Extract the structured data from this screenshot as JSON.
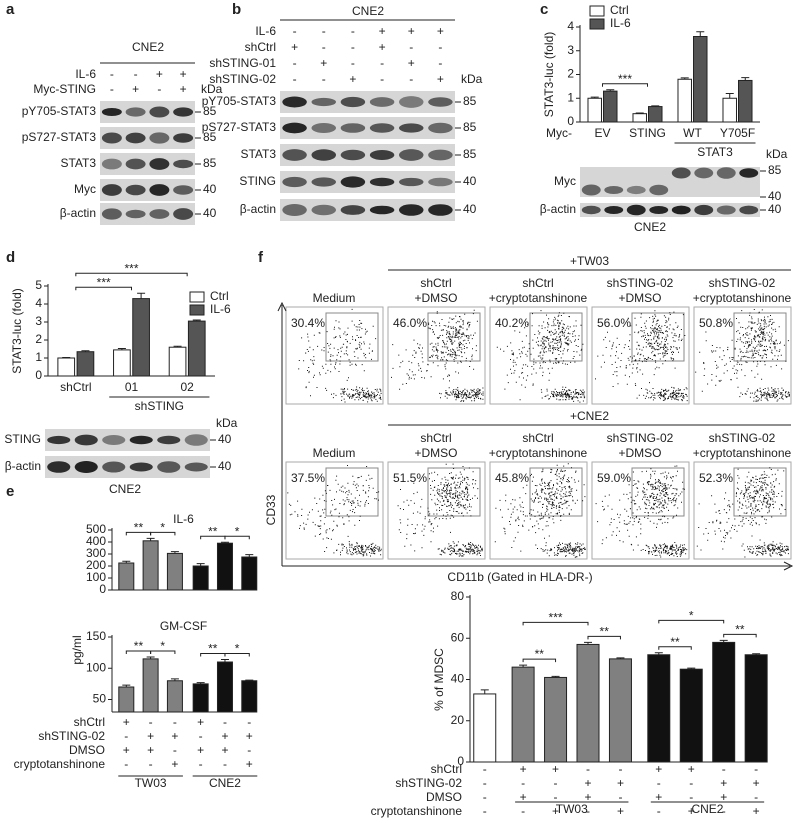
{
  "panel_labels": [
    "a",
    "b",
    "c",
    "d",
    "e",
    "f"
  ],
  "blots": {
    "a": {
      "cell_line": "CNE2",
      "unit": "kDa",
      "conditions": [
        {
          "name": "IL-6",
          "marks": [
            "-",
            "-",
            "+",
            "+"
          ]
        },
        {
          "name": "Myc-STING",
          "marks": [
            "-",
            "+",
            "-",
            "+"
          ]
        }
      ],
      "rows": [
        {
          "name": "pY705-STAT3",
          "kda": [
            85
          ]
        },
        {
          "name": "pS727-STAT3",
          "kda": [
            85
          ]
        },
        {
          "name": "STAT3",
          "kda": [
            85
          ]
        },
        {
          "name": "Myc",
          "kda": [
            40
          ]
        },
        {
          "name": "β-actin",
          "kda": [
            40
          ]
        }
      ]
    },
    "b": {
      "cell_line": "CNE2",
      "unit": "kDa",
      "conditions": [
        {
          "name": "IL-6",
          "marks": [
            "-",
            "-",
            "-",
            "+",
            "+",
            "+"
          ]
        },
        {
          "name": "shCtrl",
          "marks": [
            "+",
            "-",
            "-",
            "+",
            "-",
            "-"
          ]
        },
        {
          "name": "shSTING-01",
          "marks": [
            "-",
            "+",
            "-",
            "-",
            "+",
            "-"
          ]
        },
        {
          "name": "shSTING-02",
          "marks": [
            "-",
            "-",
            "+",
            "-",
            "-",
            "+"
          ]
        }
      ],
      "rows": [
        {
          "name": "pY705-STAT3",
          "kda": [
            85
          ]
        },
        {
          "name": "pS727-STAT3",
          "kda": [
            85
          ]
        },
        {
          "name": "STAT3",
          "kda": [
            85
          ]
        },
        {
          "name": "STING",
          "kda": [
            40
          ]
        },
        {
          "name": "β-actin",
          "kda": [
            40
          ]
        }
      ]
    },
    "c": {
      "cell_line": "CNE2",
      "unit": "kDa",
      "conditions": [],
      "rows": [
        {
          "name": "Myc",
          "kda": [
            85,
            40
          ]
        },
        {
          "name": "β-actin",
          "kda": [
            40
          ]
        }
      ]
    },
    "d": {
      "cell_line": "CNE2",
      "unit": "kDa",
      "conditions": [],
      "rows": [
        {
          "name": "STING",
          "kda": [
            40
          ]
        },
        {
          "name": "β-actin",
          "kda": [
            40
          ]
        }
      ]
    }
  },
  "chart_data": [
    {
      "type": "bar",
      "ylabel": "STAT3-luc (fold)",
      "categories": [
        "EV",
        "STING",
        "WT",
        "Y705F"
      ],
      "x_prefix": "Myc-",
      "group_label": "STAT3",
      "series": [
        {
          "name": "Ctrl",
          "color": "#ffffff",
          "values": [
            1.0,
            0.35,
            1.8,
            1.0
          ],
          "errors": [
            0.05,
            0.03,
            0.06,
            0.2
          ]
        },
        {
          "name": "IL-6",
          "color": "#555555",
          "values": [
            1.3,
            0.65,
            3.6,
            1.75
          ],
          "errors": [
            0.06,
            0.03,
            0.2,
            0.12
          ]
        }
      ],
      "ylim": [
        0,
        4
      ],
      "yticks": [
        0,
        1,
        2,
        3,
        4
      ],
      "annotations": [
        "***"
      ]
    },
    {
      "type": "bar",
      "ylabel": "STAT3-luc (fold)",
      "categories": [
        "shCtrl",
        "01",
        "02"
      ],
      "group_label": "shSTING",
      "series": [
        {
          "name": "Ctrl",
          "color": "#ffffff",
          "values": [
            1.0,
            1.45,
            1.6
          ],
          "errors": [
            0.03,
            0.08,
            0.05
          ]
        },
        {
          "name": "IL-6",
          "color": "#555555",
          "values": [
            1.35,
            4.3,
            3.05
          ],
          "errors": [
            0.05,
            0.3,
            0.06
          ]
        }
      ],
      "ylim": [
        0,
        5
      ],
      "yticks": [
        0,
        1,
        2,
        3,
        4,
        5
      ],
      "annotations": [
        "***",
        "***"
      ]
    },
    {
      "type": "bar",
      "title": "IL-6",
      "values": [
        225,
        410,
        305,
        200,
        390,
        275
      ],
      "errors": [
        15,
        20,
        15,
        20,
        8,
        20
      ],
      "colors": [
        "#808080",
        "#808080",
        "#808080",
        "#111111",
        "#111111",
        "#111111"
      ],
      "ylim": [
        0,
        500
      ],
      "yticks": [
        0,
        100,
        200,
        300,
        400,
        500
      ],
      "annotations": [
        "**",
        "*",
        "**",
        "*"
      ]
    },
    {
      "type": "bar",
      "title": "GM-CSF",
      "values": [
        70,
        115,
        80,
        75,
        110,
        80
      ],
      "errors": [
        3,
        3,
        3,
        2,
        4,
        1
      ],
      "colors": [
        "#808080",
        "#808080",
        "#808080",
        "#111111",
        "#111111",
        "#111111"
      ],
      "ylim": [
        30,
        150
      ],
      "yticks": [
        50,
        100,
        150
      ],
      "annotations": [
        "**",
        "*",
        "**",
        "*"
      ]
    },
    {
      "type": "bar",
      "ylabel": "% of MDSC",
      "values": [
        33,
        46,
        41,
        57,
        50,
        52,
        45,
        58,
        52
      ],
      "errors": [
        2,
        1,
        0.5,
        1,
        0.5,
        1,
        0.5,
        1,
        0.5
      ],
      "colors": [
        "#ffffff",
        "#808080",
        "#808080",
        "#808080",
        "#808080",
        "#111111",
        "#111111",
        "#111111",
        "#111111"
      ],
      "ylim": [
        0,
        80
      ],
      "yticks": [
        0,
        20,
        40,
        60,
        80
      ],
      "annotations": [
        "**",
        "***",
        "**",
        "**",
        "*",
        "**"
      ],
      "conditions": [
        {
          "name": "shCtrl",
          "marks": [
            "-",
            "+",
            "+",
            "-",
            "-",
            "+",
            "+",
            "-",
            "-"
          ]
        },
        {
          "name": "shSTING-02",
          "marks": [
            "-",
            "-",
            "-",
            "+",
            "+",
            "-",
            "-",
            "+",
            "+"
          ]
        },
        {
          "name": "DMSO",
          "marks": [
            "-",
            "+",
            "-",
            "+",
            "-",
            "+",
            "-",
            "+",
            "-"
          ]
        },
        {
          "name": "cryptotanshinone",
          "marks": [
            "-",
            "-",
            "+",
            "-",
            "+",
            "-",
            "+",
            "-",
            "+"
          ]
        }
      ],
      "groups": [
        "TW03",
        "CNE2"
      ]
    }
  ],
  "panel_e": {
    "ylabel": "pg/ml",
    "conditions": [
      {
        "name": "shCtrl",
        "marks": [
          "+",
          "-",
          "-",
          "+",
          "-",
          "-"
        ]
      },
      {
        "name": "shSTING-02",
        "marks": [
          "-",
          "+",
          "+",
          "-",
          "+",
          "+"
        ]
      },
      {
        "name": "DMSO",
        "marks": [
          "+",
          "+",
          "-",
          "+",
          "+",
          "-"
        ]
      },
      {
        "name": "cryptotanshinone",
        "marks": [
          "-",
          "-",
          "+",
          "-",
          "-",
          "+"
        ]
      }
    ],
    "groups": [
      "TW03",
      "CNE2"
    ]
  },
  "flow": {
    "ylabel": "CD33",
    "xlabel": "CD11b (Gated in HLA-DR-)",
    "rows": [
      {
        "header": "+TW03",
        "plots": [
          {
            "label": [
              "Medium"
            ],
            "percent": "30.4%"
          },
          {
            "label": [
              "shCtrl",
              "+DMSO"
            ],
            "percent": "46.0%"
          },
          {
            "label": [
              "shCtrl",
              "+cryptotanshinone"
            ],
            "percent": "40.2%"
          },
          {
            "label": [
              "shSTING-02",
              "+DMSO"
            ],
            "percent": "56.0%"
          },
          {
            "label": [
              "shSTING-02",
              "+cryptotanshinone"
            ],
            "percent": "50.8%"
          }
        ]
      },
      {
        "header": "+CNE2",
        "plots": [
          {
            "label": [
              "Medium"
            ],
            "percent": "37.5%"
          },
          {
            "label": [
              "shCtrl",
              "+DMSO"
            ],
            "percent": "51.5%"
          },
          {
            "label": [
              "shCtrl",
              "+cryptotanshinone"
            ],
            "percent": "45.8%"
          },
          {
            "label": [
              "shSTING-02",
              "+DMSO"
            ],
            "percent": "59.0%"
          },
          {
            "label": [
              "shSTING-02",
              "+cryptotanshinone"
            ],
            "percent": "52.3%"
          }
        ]
      }
    ]
  }
}
